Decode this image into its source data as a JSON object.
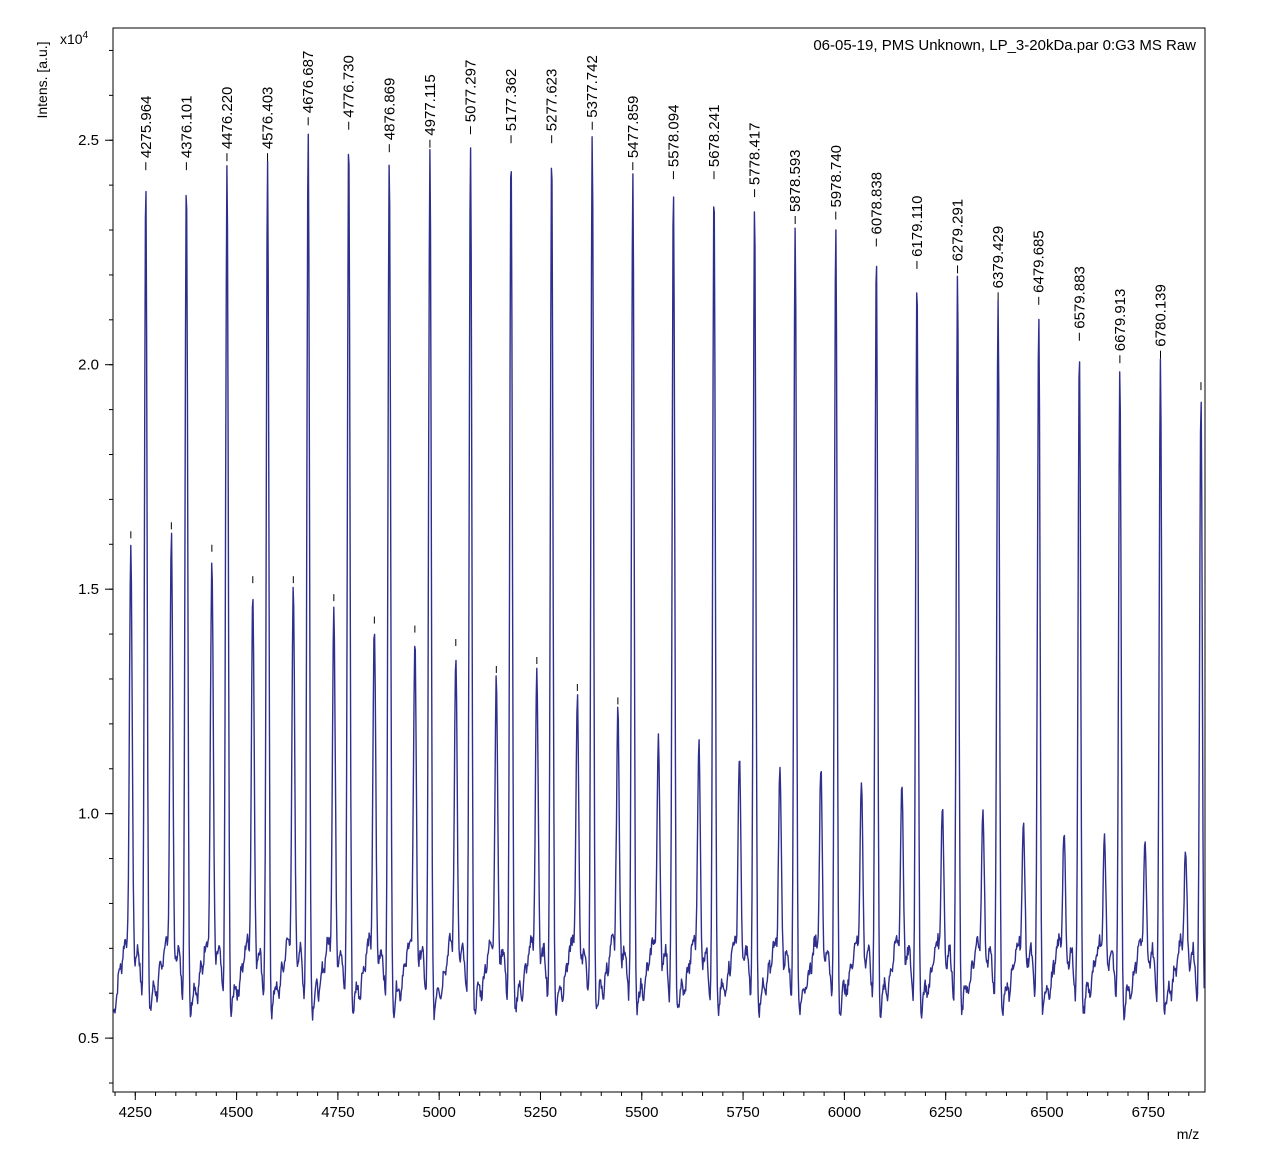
{
  "chart_data": {
    "type": "line",
    "title": "06-05-19, PMS Unknown, LP_3-20kDa.par 0:G3 MS Raw",
    "xlabel": "m/z",
    "ylabel": "Intens. [a.u.]",
    "y_multiplier_base": "x10",
    "y_multiplier_exp": "4",
    "xlim": [
      4195,
      6890
    ],
    "ylim": [
      0.38,
      2.75
    ],
    "x_ticks": [
      4250,
      4500,
      4750,
      5000,
      5250,
      5500,
      5750,
      6000,
      6250,
      6500,
      6750
    ],
    "x_minor_step": 50,
    "y_ticks": [
      0.5,
      1.0,
      1.5,
      2.0,
      2.5
    ],
    "y_tick_labels": [
      "0.5",
      "1.0",
      "1.5",
      "2.0",
      "2.5"
    ],
    "y_minor_step": 0.1,
    "grid": false,
    "legend": "none",
    "line_color": "#2e2e8c",
    "baseline": 0.54,
    "peaks": [
      {
        "x": 4275.964,
        "y": 2.42,
        "label": "4275.964"
      },
      {
        "x": 4376.101,
        "y": 2.42,
        "label": "4376.101"
      },
      {
        "x": 4476.22,
        "y": 2.44,
        "label": "4476.220"
      },
      {
        "x": 4576.403,
        "y": 2.44,
        "label": "4576.403"
      },
      {
        "x": 4676.687,
        "y": 2.52,
        "label": "4676.687"
      },
      {
        "x": 4776.73,
        "y": 2.51,
        "label": "4776.730"
      },
      {
        "x": 4876.869,
        "y": 2.46,
        "label": "4876.869"
      },
      {
        "x": 4977.115,
        "y": 2.47,
        "label": "4977.115"
      },
      {
        "x": 5077.297,
        "y": 2.5,
        "label": "5077.297"
      },
      {
        "x": 5177.362,
        "y": 2.48,
        "label": "5177.362"
      },
      {
        "x": 5277.623,
        "y": 2.48,
        "label": "5277.623"
      },
      {
        "x": 5377.742,
        "y": 2.51,
        "label": "5377.742"
      },
      {
        "x": 5477.859,
        "y": 2.42,
        "label": "5477.859"
      },
      {
        "x": 5578.094,
        "y": 2.4,
        "label": "5578.094"
      },
      {
        "x": 5678.241,
        "y": 2.4,
        "label": "5678.241"
      },
      {
        "x": 5778.417,
        "y": 2.36,
        "label": "5778.417"
      },
      {
        "x": 5878.593,
        "y": 2.3,
        "label": "5878.593"
      },
      {
        "x": 5978.74,
        "y": 2.31,
        "label": "5978.740"
      },
      {
        "x": 6078.838,
        "y": 2.25,
        "label": "6078.838"
      },
      {
        "x": 6179.11,
        "y": 2.2,
        "label": "6179.110"
      },
      {
        "x": 6279.291,
        "y": 2.19,
        "label": "6279.291"
      },
      {
        "x": 6379.429,
        "y": 2.13,
        "label": "6379.429"
      },
      {
        "x": 6479.685,
        "y": 2.12,
        "label": "6479.685"
      },
      {
        "x": 6579.883,
        "y": 2.04,
        "label": "6579.883"
      },
      {
        "x": 6679.913,
        "y": 1.99,
        "label": "6679.913"
      },
      {
        "x": 6780.139,
        "y": 2.0,
        "label": "6780.139"
      },
      {
        "x": 6880.0,
        "y": 1.93,
        "label": ""
      }
    ],
    "secondary_peaks": [
      {
        "x": 4239,
        "y": 1.6,
        "marked": true
      },
      {
        "x": 4339,
        "y": 1.62,
        "marked": true
      },
      {
        "x": 4439,
        "y": 1.57,
        "marked": true
      },
      {
        "x": 4540,
        "y": 1.5,
        "marked": true
      },
      {
        "x": 4640,
        "y": 1.5,
        "marked": true
      },
      {
        "x": 4740,
        "y": 1.46,
        "marked": true
      },
      {
        "x": 4840,
        "y": 1.41,
        "marked": true
      },
      {
        "x": 4940,
        "y": 1.39,
        "marked": true
      },
      {
        "x": 5041,
        "y": 1.36,
        "marked": true
      },
      {
        "x": 5141,
        "y": 1.3,
        "marked": true
      },
      {
        "x": 5241,
        "y": 1.32,
        "marked": true
      },
      {
        "x": 5341,
        "y": 1.26,
        "marked": true
      },
      {
        "x": 5441,
        "y": 1.23,
        "marked": true
      },
      {
        "x": 5541,
        "y": 1.18,
        "marked": false
      },
      {
        "x": 5641,
        "y": 1.16,
        "marked": false
      },
      {
        "x": 5741,
        "y": 1.13,
        "marked": false
      },
      {
        "x": 5841,
        "y": 1.1,
        "marked": false
      },
      {
        "x": 5942,
        "y": 1.11,
        "marked": false
      },
      {
        "x": 6042,
        "y": 1.08,
        "marked": false
      },
      {
        "x": 6142,
        "y": 1.07,
        "marked": false
      },
      {
        "x": 6242,
        "y": 1.02,
        "marked": false
      },
      {
        "x": 6342,
        "y": 1.0,
        "marked": false
      },
      {
        "x": 6442,
        "y": 0.98,
        "marked": false
      },
      {
        "x": 6542,
        "y": 0.96,
        "marked": false
      },
      {
        "x": 6642,
        "y": 0.95,
        "marked": false
      },
      {
        "x": 6742,
        "y": 0.93,
        "marked": false
      },
      {
        "x": 6842,
        "y": 0.92,
        "marked": false
      }
    ]
  }
}
